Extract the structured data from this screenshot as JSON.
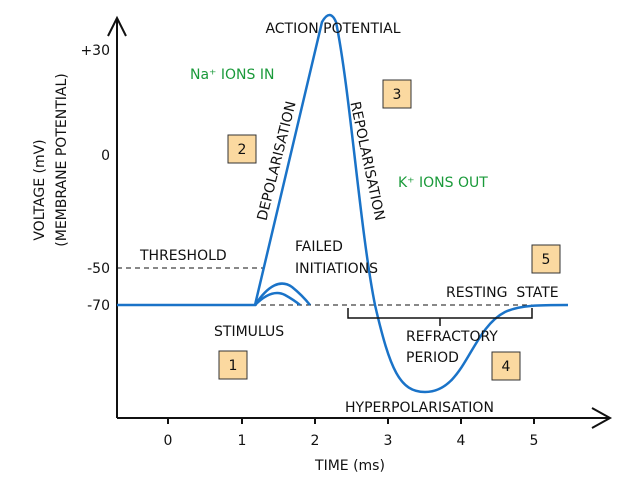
{
  "title": "ACTION POTENTIAL",
  "y_axis": {
    "label_line1": "VOLTAGE (mV)",
    "label_line2": "(MEMBRANE POTENTIAL)",
    "ticks": [
      "+30",
      "0",
      "-50",
      "-70"
    ]
  },
  "x_axis": {
    "label": "TIME (ms)",
    "ticks": [
      "0",
      "1",
      "2",
      "3",
      "4",
      "5"
    ]
  },
  "annotations": {
    "na_ions": "Na⁺ IONS IN",
    "k_ions": "K⁺ IONS OUT",
    "depolarisation": "DEPOLARISATION",
    "repolarisation": "REPOLARISATION",
    "threshold": "THRESHOLD",
    "failed_1": "FAILED",
    "failed_2": "INITIATIONS",
    "resting_state": "RESTING  STATE",
    "stimulus": "STIMULUS",
    "refractory_1": "REFRACTORY",
    "refractory_2": "PERIOD",
    "hyperpolarisation": "HYPERPOLARISATION"
  },
  "stages": [
    "1",
    "2",
    "3",
    "4",
    "5"
  ],
  "colors": {
    "curve": "#1a73c8",
    "ions_text": "#1a9a3a",
    "stage_box": "#fbd9a0"
  }
}
